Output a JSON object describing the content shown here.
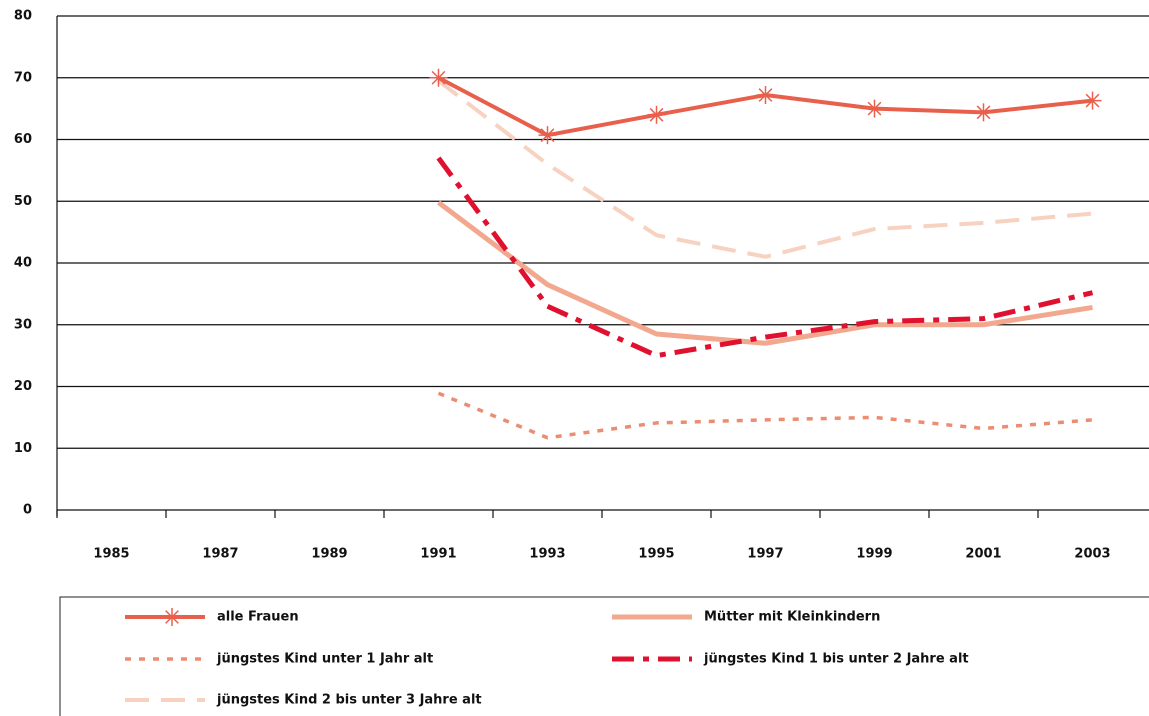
{
  "chart_data": {
    "type": "line",
    "categories": [
      "1985",
      "1987",
      "1989",
      "1991",
      "1993",
      "1995",
      "1997",
      "1999",
      "2001",
      "2003"
    ],
    "series": [
      {
        "name": "alle Frauen",
        "color": "#e8604c",
        "style": "solid-star",
        "values": [
          null,
          null,
          null,
          70,
          60.7,
          64,
          67.2,
          65,
          64.4,
          66.3
        ]
      },
      {
        "name": "Mütter mit  Kleinkindern",
        "color": "#f2a88e",
        "style": "solid",
        "values": [
          null,
          null,
          null,
          49.8,
          36.5,
          28.5,
          27,
          30,
          30,
          32.8
        ]
      },
      {
        "name": "jüngstes Kind unter 1 Jahr alt",
        "color": "#ec8c70",
        "style": "dotted",
        "values": [
          null,
          null,
          null,
          18.9,
          11.7,
          14.1,
          14.6,
          15,
          13.2,
          14.6
        ]
      },
      {
        "name": "jüngstes Kind 1 bis unter 2 Jahre alt",
        "color": "#e0102f",
        "style": "dashdot",
        "values": [
          null,
          null,
          null,
          57,
          33,
          25,
          28,
          30.5,
          31,
          35.2
        ]
      },
      {
        "name": "jüngstes Kind 2 bis unter 3 Jahre alt",
        "color": "#f8d2c0",
        "style": "dashed",
        "values": [
          null,
          null,
          null,
          69.5,
          56,
          44.5,
          41,
          45.5,
          46.5,
          48
        ]
      }
    ],
    "ylim": [
      0,
      80
    ],
    "yticks": [
      0,
      10,
      20,
      30,
      40,
      50,
      60,
      70,
      80
    ],
    "grid": true
  }
}
